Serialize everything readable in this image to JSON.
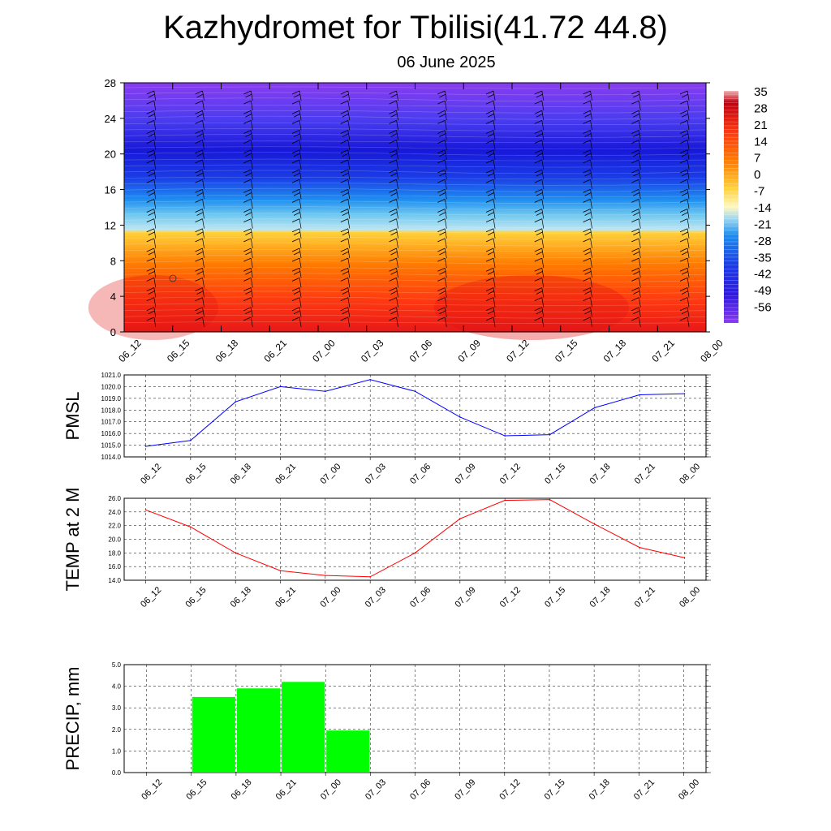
{
  "title": "Kazhydromet for Tbilisi(41.72 44.8)",
  "subtitle": "06 June 2025",
  "chart_data": [
    {
      "type": "heatmap",
      "description_key": "temperature-height cross-section with wind barbs",
      "x_ticks": [
        "06_12",
        "06_15",
        "06_18",
        "06_21",
        "07_00",
        "07_03",
        "07_06",
        "07_09",
        "07_12",
        "07_15",
        "07_18",
        "07_21",
        "08_00"
      ],
      "y_ticks": [
        "0",
        "4",
        "8",
        "12",
        "16",
        "20",
        "24",
        "28"
      ],
      "ylim": [
        0,
        28
      ],
      "colorbar_labels": [
        "35",
        "28",
        "21",
        "14",
        "7",
        "0",
        "-7",
        "-14",
        "-21",
        "-28",
        "-35",
        "-42",
        "-49",
        "-56"
      ],
      "colorbar_range": [
        -63,
        35
      ],
      "colors": {
        "warm_bottom": "#e81818",
        "warm_mid": "#ff7a00",
        "warm_top": "#ffd23a",
        "cold_low": "#9fd8f0",
        "cold_mid": "#1e8ff0",
        "cold_top": "#1a2be0",
        "coldest": "#8a3cf0"
      }
    },
    {
      "type": "line",
      "ylabel": "PMSL",
      "x": [
        "06_12",
        "06_15",
        "06_18",
        "06_21",
        "07_00",
        "07_03",
        "07_06",
        "07_09",
        "07_12",
        "07_15",
        "07_18",
        "07_21",
        "08_00"
      ],
      "values": [
        1014.9,
        1015.4,
        1018.7,
        1020.0,
        1019.6,
        1020.6,
        1019.6,
        1017.4,
        1015.8,
        1015.9,
        1018.2,
        1019.3,
        1019.4
      ],
      "y_ticks": [
        "1014.0",
        "1015.0",
        "1016.0",
        "1017.0",
        "1018.0",
        "1019.0",
        "1020.0",
        "1021.0"
      ],
      "ylim": [
        1014,
        1021
      ],
      "color": "#0000ff"
    },
    {
      "type": "line",
      "ylabel": "TEMP at 2 M",
      "x": [
        "06_12",
        "06_15",
        "06_18",
        "06_21",
        "07_00",
        "07_03",
        "07_06",
        "07_09",
        "07_12",
        "07_15",
        "07_18",
        "07_21",
        "08_00"
      ],
      "values": [
        24.3,
        21.8,
        18.0,
        15.4,
        14.7,
        14.5,
        18.0,
        23.0,
        25.7,
        25.8,
        22.2,
        18.8,
        17.3
      ],
      "y_ticks": [
        "14.0",
        "16.0",
        "18.0",
        "20.0",
        "22.0",
        "24.0",
        "26.0"
      ],
      "ylim": [
        14,
        26
      ],
      "color": "#ff0000"
    },
    {
      "type": "bar",
      "ylabel": "PRECIP, mm",
      "x": [
        "06_12",
        "06_15",
        "06_18",
        "06_21",
        "07_00",
        "07_03",
        "07_06",
        "07_09",
        "07_12",
        "07_15",
        "07_18",
        "07_21",
        "08_00"
      ],
      "values": [
        0,
        3.5,
        3.9,
        4.2,
        1.95,
        0,
        0,
        0,
        0,
        0,
        0,
        0,
        0
      ],
      "y_ticks": [
        "0.0",
        "1.0",
        "2.0",
        "3.0",
        "4.0",
        "5.0"
      ],
      "ylim": [
        0,
        5
      ],
      "color": "#00ff00"
    }
  ]
}
